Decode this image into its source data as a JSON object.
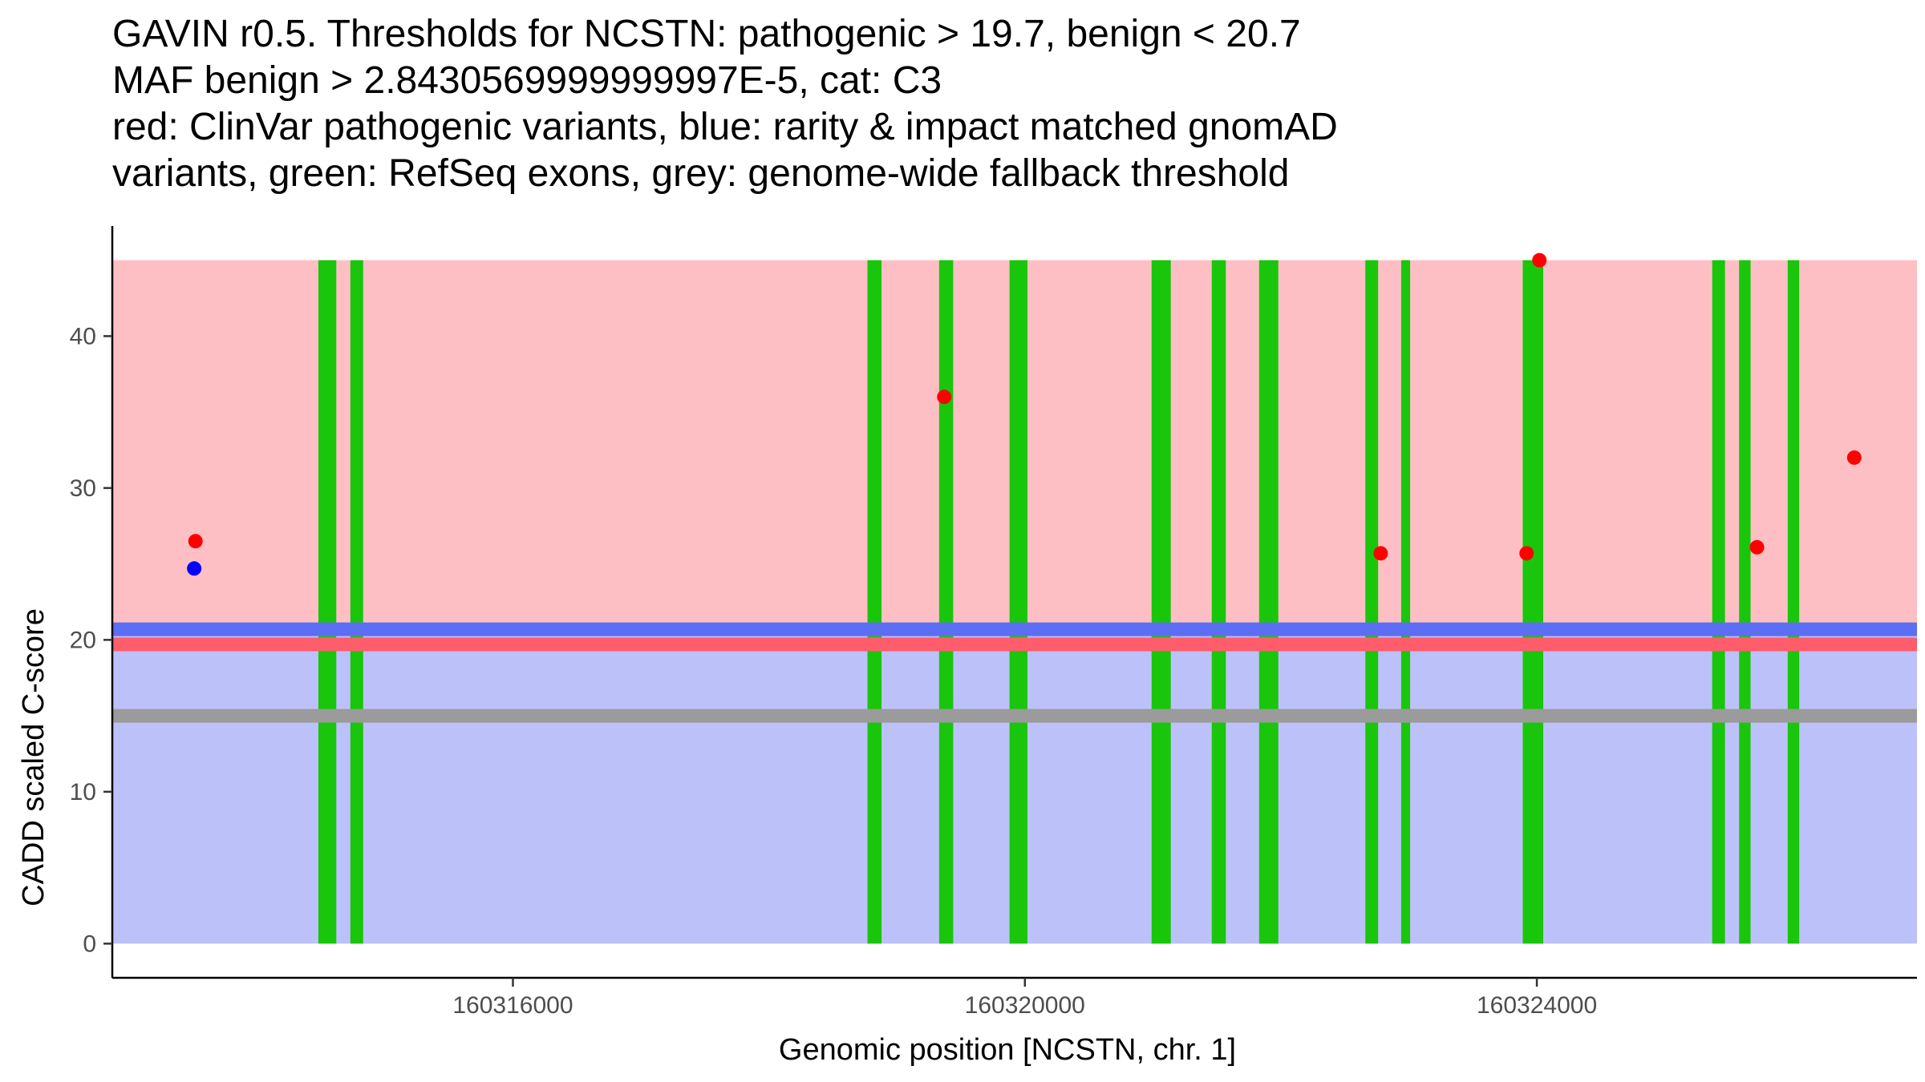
{
  "chart_data": {
    "type": "scatter",
    "title_lines": [
      "GAVIN r0.5. Thresholds for NCSTN: pathogenic > 19.7, benign < 20.7",
      "MAF benign > 2.8430569999999997E-5, cat: C3",
      "red: ClinVar pathogenic variants, blue: rarity & impact matched gnomAD",
      "variants, green: RefSeq exons, grey: genome-wide fallback threshold"
    ],
    "xlabel": "Genomic position [NCSTN, chr. 1]",
    "ylabel": "CADD scaled C-score",
    "xlim": [
      160312870,
      160326970
    ],
    "ylim": [
      -2.25,
      47.25
    ],
    "x_ticks": [
      {
        "value": 160316000,
        "label": "160316000"
      },
      {
        "value": 160320000,
        "label": "160320000"
      },
      {
        "value": 160324000,
        "label": "160324000"
      }
    ],
    "y_ticks": [
      {
        "value": 0,
        "label": "0"
      },
      {
        "value": 10,
        "label": "10"
      },
      {
        "value": 20,
        "label": "20"
      },
      {
        "value": 30,
        "label": "30"
      },
      {
        "value": 40,
        "label": "40"
      }
    ],
    "x_range": [
      160312870,
      160326970
    ],
    "pathogenic_region": {
      "ymin": 19.7,
      "ymax": 45,
      "color": "#fdbfc4"
    },
    "benign_region": {
      "ymin": 0,
      "ymax": 20.7,
      "color": "#bdc1fa"
    },
    "threshold_lines": [
      {
        "name": "benign-threshold",
        "y": 20.7,
        "color": "#5b6ef4"
      },
      {
        "name": "pathogenic-threshold",
        "y": 19.7,
        "color": "#ff5c6c"
      },
      {
        "name": "fallback-threshold",
        "y": 15.0,
        "color": "#9b9b9b"
      }
    ],
    "exons": [
      {
        "start": 160314480,
        "end": 160314620
      },
      {
        "start": 160314730,
        "end": 160314830
      },
      {
        "start": 160318770,
        "end": 160318880
      },
      {
        "start": 160319330,
        "end": 160319440
      },
      {
        "start": 160319880,
        "end": 160320020
      },
      {
        "start": 160320990,
        "end": 160321140
      },
      {
        "start": 160321460,
        "end": 160321570
      },
      {
        "start": 160321830,
        "end": 160321980
      },
      {
        "start": 160322660,
        "end": 160322760
      },
      {
        "start": 160322940,
        "end": 160323010
      },
      {
        "start": 160323890,
        "end": 160324050
      },
      {
        "start": 160325370,
        "end": 160325470
      },
      {
        "start": 160325580,
        "end": 160325670
      },
      {
        "start": 160325960,
        "end": 160326050
      }
    ],
    "exon_color": "#19c60b",
    "series": [
      {
        "name": "ClinVar pathogenic variants",
        "color": "#ff0000",
        "points": [
          {
            "x": 160313520,
            "y": 26.5
          },
          {
            "x": 160319370,
            "y": 36
          },
          {
            "x": 160322780,
            "y": 25.7
          },
          {
            "x": 160323920,
            "y": 25.7
          },
          {
            "x": 160324020,
            "y": 45
          },
          {
            "x": 160325720,
            "y": 26.1
          },
          {
            "x": 160326480,
            "y": 32
          }
        ]
      },
      {
        "name": "rarity & impact matched gnomAD variants",
        "color": "#0000ff",
        "points": [
          {
            "x": 160313510,
            "y": 24.7
          }
        ]
      }
    ]
  }
}
